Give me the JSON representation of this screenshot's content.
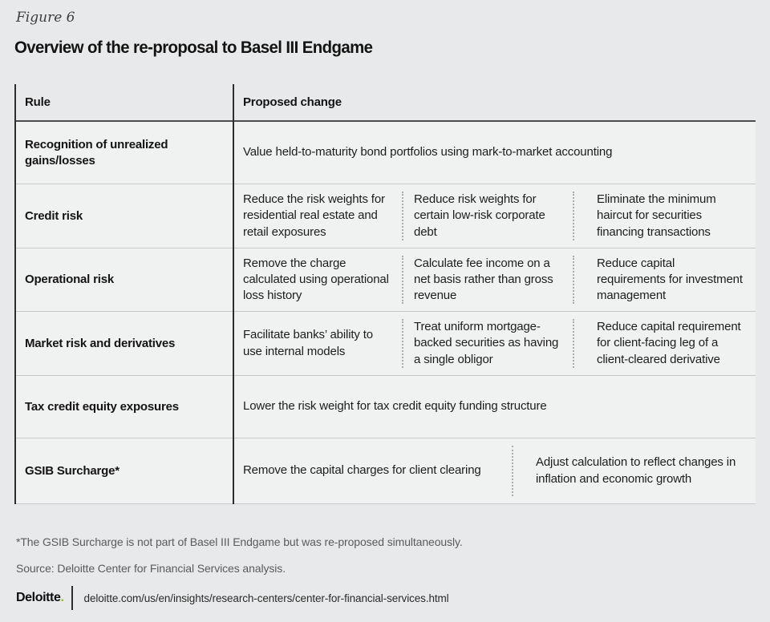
{
  "page": {
    "figure_label": "Figure 6",
    "title": "Overview of the re-proposal to Basel III Endgame"
  },
  "table": {
    "headers": [
      "Rule",
      "Proposed change"
    ],
    "rows": [
      {
        "rule": "Recognition of unrealized gains/losses",
        "changes": [
          "Value held-to-maturity bond portfolios using mark-to-market accounting"
        ]
      },
      {
        "rule": "Credit risk",
        "changes": [
          "Reduce the risk weights for residential real estate and retail exposures",
          "Reduce risk weights for certain low-risk corporate debt",
          "Eliminate the minimum haircut for securities financing transactions"
        ]
      },
      {
        "rule": "Operational risk",
        "changes": [
          "Remove the charge calculated using operational loss history",
          "Calculate fee income on a net basis rather than gross revenue",
          "Reduce capital requirements for investment management"
        ]
      },
      {
        "rule": "Market risk and derivatives",
        "changes": [
          "Facilitate banks’ ability to use internal models",
          "Treat uniform mortgage-backed securities as having a single obligor",
          "Reduce capital requirement for client-facing leg of a client-cleared derivative"
        ]
      },
      {
        "rule": "Tax credit equity exposures",
        "changes": [
          "Lower the risk weight for tax credit equity funding structure"
        ]
      },
      {
        "rule": "GSIB Surcharge*",
        "changes": [
          "Remove the capital charges for client clearing",
          "Adjust calculation to reflect changes in inflation and economic growth"
        ]
      }
    ]
  },
  "footnotes": {
    "asterisk": "*The GSIB Surcharge is not part of Basel III Endgame but was re-proposed simultaneously.",
    "source": "Source: Deloitte Center for Financial Services analysis."
  },
  "footer": {
    "brand": "Deloitte",
    "brand_dot": ".",
    "url": "deloitte.com/us/en/insights/research-centers/center-for-financial-services.html"
  },
  "colors": {
    "page_bg": "#e8e9ea",
    "row_bg": "#f0f1f1",
    "line_dark": "#2e2e2e",
    "line_light": "#c6c8c9",
    "dotted_separator": "#a9abad",
    "text_dark": "#141414",
    "text_gray": "#595b5d",
    "deloitte_green": "#86bc25"
  }
}
